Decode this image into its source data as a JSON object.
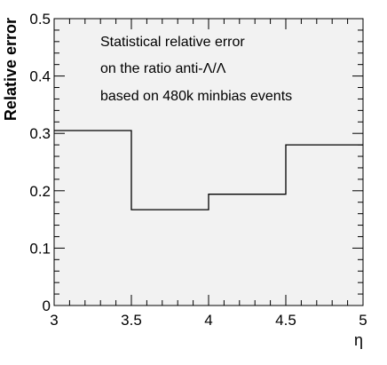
{
  "chart_data": {
    "type": "step",
    "xlabel": "η",
    "ylabel": "Relative error",
    "xlim": [
      3,
      5
    ],
    "ylim": [
      0,
      0.5
    ],
    "x_ticks": [
      "3",
      "3.5",
      "4",
      "4.5",
      "5"
    ],
    "y_ticks": [
      "0",
      "0.1",
      "0.2",
      "0.3",
      "0.4",
      "0.5"
    ],
    "bins": [
      {
        "x_low": 3.0,
        "x_high": 3.5,
        "value": 0.305
      },
      {
        "x_low": 3.5,
        "x_high": 4.0,
        "value": 0.167
      },
      {
        "x_low": 4.0,
        "x_high": 4.5,
        "value": 0.194
      },
      {
        "x_low": 4.5,
        "x_high": 5.0,
        "value": 0.28
      }
    ],
    "annotations": [
      "Statistical relative error",
      "on the ratio anti-Λ/Λ",
      "based on 480k minbias events"
    ],
    "grid": false,
    "background": "#f2f2f2",
    "line_color": "#000000"
  }
}
